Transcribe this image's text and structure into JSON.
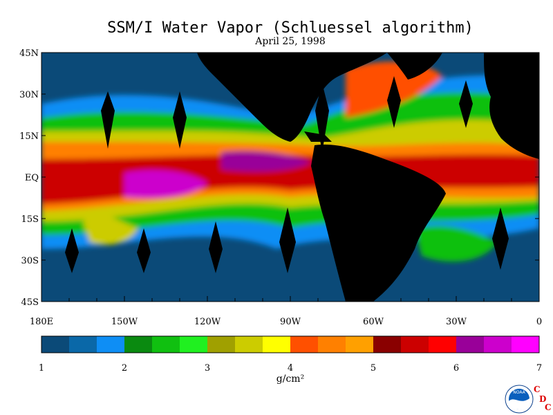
{
  "title": "SSM/I Water Vapor (Schluessel algorithm)",
  "subtitle": "April 25, 1998",
  "lat_labels": [
    "45N",
    "30N",
    "15N",
    "EQ",
    "15S",
    "30S",
    "45S"
  ],
  "lon_labels": [
    "180E",
    "150W",
    "120W",
    "90W",
    "60W",
    "30W",
    "0"
  ],
  "colorbar": {
    "unit": "g/cm²",
    "ticks": [
      "1",
      "2",
      "3",
      "4",
      "5",
      "6",
      "7"
    ],
    "colors": [
      "#0b4a78",
      "#0a68a8",
      "#0e8ef5",
      "#0a8a10",
      "#10c010",
      "#20f020",
      "#a0a000",
      "#cccc00",
      "#ffff00",
      "#ff5000",
      "#ff8000",
      "#ffa000",
      "#8a0000",
      "#cc0000",
      "#ff0000",
      "#990099",
      "#cc00cc",
      "#ff00ff"
    ]
  },
  "logo": {
    "noaa_text": "NOAA",
    "cdc_letters": [
      "C",
      "D",
      "C"
    ]
  }
}
